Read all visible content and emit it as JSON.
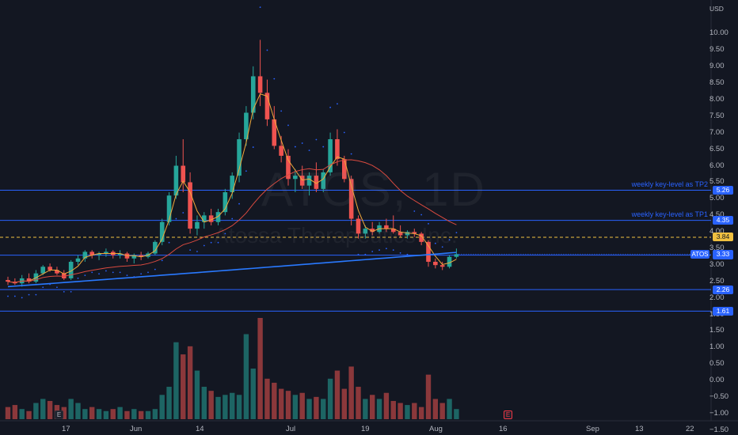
{
  "chart_data": {
    "type": "candlestick",
    "symbol": "ATOS",
    "interval": "1D",
    "company": "Atossa Therapeutics Inc.",
    "currency": "USD",
    "price_axis_ticks": [
      "10.00",
      "9.50",
      "9.00",
      "8.50",
      "8.00",
      "7.50",
      "7.00",
      "6.50",
      "6.00",
      "5.50",
      "5.00",
      "4.50",
      "4.00",
      "3.50",
      "3.00",
      "2.50",
      "2.00",
      "1.50"
    ],
    "volume_axis_ticks": [
      "1.50",
      "1.00",
      "0.50",
      "0.00",
      "−0.50",
      "−1.00",
      "−1.50"
    ],
    "x_axis_labels": [
      "17",
      "Jun",
      "14",
      "Jul",
      "19",
      "Aug",
      "16",
      "Sep",
      "13",
      "22"
    ],
    "levels": [
      {
        "price": 5.26,
        "label": "5.26",
        "note": "weekly key-level as TP2",
        "style": "solid"
      },
      {
        "price": 4.35,
        "label": "4.35",
        "note": "weekly key-level as TP1",
        "style": "solid"
      },
      {
        "price": 3.84,
        "label": "3.84",
        "note": "",
        "style": "dashed"
      },
      {
        "price": 3.3,
        "label": "3.30",
        "note": "",
        "style": "solid"
      },
      {
        "price": 2.26,
        "label": "2.26",
        "note": "",
        "style": "solid"
      },
      {
        "price": 1.61,
        "label": "1.61",
        "note": "",
        "style": "solid"
      }
    ],
    "last_price": {
      "symbol": "ATOS",
      "value": "3.33"
    },
    "candles": [
      [
        2.55,
        2.65,
        2.4,
        2.5
      ],
      [
        2.5,
        2.6,
        2.4,
        2.45
      ],
      [
        2.45,
        2.7,
        2.35,
        2.6
      ],
      [
        2.6,
        2.75,
        2.45,
        2.5
      ],
      [
        2.5,
        2.85,
        2.45,
        2.75
      ],
      [
        2.75,
        3.0,
        2.7,
        2.95
      ],
      [
        2.95,
        3.05,
        2.8,
        2.85
      ],
      [
        2.85,
        2.95,
        2.7,
        2.75
      ],
      [
        2.75,
        2.85,
        2.55,
        2.6
      ],
      [
        2.6,
        3.15,
        2.55,
        3.1
      ],
      [
        3.1,
        3.3,
        3.0,
        3.2
      ],
      [
        3.2,
        3.45,
        3.1,
        3.4
      ],
      [
        3.4,
        3.45,
        3.2,
        3.3
      ],
      [
        3.3,
        3.4,
        3.15,
        3.35
      ],
      [
        3.35,
        3.5,
        3.25,
        3.4
      ],
      [
        3.4,
        3.45,
        3.2,
        3.3
      ],
      [
        3.3,
        3.45,
        3.2,
        3.35
      ],
      [
        3.35,
        3.4,
        3.1,
        3.2
      ],
      [
        3.2,
        3.35,
        3.05,
        3.3
      ],
      [
        3.3,
        3.4,
        3.15,
        3.25
      ],
      [
        3.25,
        3.4,
        3.2,
        3.35
      ],
      [
        3.35,
        3.75,
        3.3,
        3.7
      ],
      [
        3.7,
        4.4,
        3.6,
        4.3
      ],
      [
        4.3,
        5.2,
        4.2,
        5.1
      ],
      [
        5.1,
        6.3,
        5.0,
        6.0
      ],
      [
        6.0,
        6.8,
        5.2,
        5.5
      ],
      [
        5.5,
        5.8,
        3.95,
        4.1
      ],
      [
        4.1,
        4.5,
        3.9,
        4.3
      ],
      [
        4.3,
        4.6,
        4.1,
        4.5
      ],
      [
        4.5,
        4.7,
        4.2,
        4.3
      ],
      [
        4.3,
        4.7,
        4.2,
        4.6
      ],
      [
        4.6,
        5.3,
        4.5,
        5.2
      ],
      [
        5.2,
        5.8,
        5.0,
        5.7
      ],
      [
        5.7,
        7.0,
        5.5,
        6.8
      ],
      [
        6.8,
        7.8,
        6.6,
        7.6
      ],
      [
        7.6,
        9.0,
        7.4,
        8.7
      ],
      [
        8.7,
        9.8,
        7.8,
        8.2
      ],
      [
        8.2,
        8.6,
        7.2,
        7.4
      ],
      [
        7.4,
        7.8,
        6.5,
        6.6
      ],
      [
        6.6,
        6.9,
        6.1,
        6.3
      ],
      [
        6.3,
        6.5,
        5.4,
        5.6
      ],
      [
        5.6,
        5.9,
        5.2,
        5.7
      ],
      [
        5.7,
        6.0,
        5.3,
        5.4
      ],
      [
        5.4,
        5.8,
        5.1,
        5.7
      ],
      [
        5.7,
        6.1,
        5.2,
        5.3
      ],
      [
        5.3,
        5.9,
        5.2,
        5.8
      ],
      [
        5.8,
        7.0,
        5.7,
        6.8
      ],
      [
        6.8,
        7.1,
        6.0,
        6.2
      ],
      [
        6.2,
        6.3,
        5.5,
        5.6
      ],
      [
        5.6,
        5.7,
        4.2,
        4.4
      ],
      [
        4.4,
        4.5,
        3.8,
        3.95
      ],
      [
        3.95,
        4.2,
        3.8,
        4.1
      ],
      [
        4.1,
        4.3,
        3.9,
        4.0
      ],
      [
        4.0,
        4.3,
        3.95,
        4.2
      ],
      [
        4.2,
        4.4,
        4.0,
        4.1
      ],
      [
        4.1,
        4.5,
        3.95,
        4.0
      ],
      [
        4.0,
        4.2,
        3.85,
        3.9
      ],
      [
        3.9,
        4.05,
        3.8,
        4.0
      ],
      [
        4.0,
        4.1,
        3.85,
        3.95
      ],
      [
        3.95,
        4.0,
        3.6,
        3.7
      ],
      [
        3.7,
        3.75,
        2.95,
        3.1
      ],
      [
        3.1,
        3.2,
        2.9,
        3.0
      ],
      [
        3.0,
        3.1,
        2.85,
        2.95
      ],
      [
        2.95,
        3.3,
        2.9,
        3.25
      ],
      [
        3.25,
        3.5,
        3.2,
        3.33
      ]
    ],
    "volume_scale": "relative"
  }
}
